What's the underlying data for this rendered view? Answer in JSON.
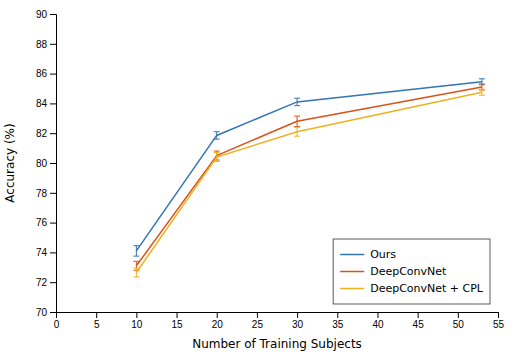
{
  "chart_data": {
    "type": "line",
    "x": [
      10,
      20,
      30,
      53
    ],
    "series": [
      {
        "name": "Ours",
        "color": "#3375b5",
        "values": [
          74.1,
          81.85,
          84.1,
          85.45
        ],
        "errors": [
          0.35,
          0.25,
          0.25,
          0.2
        ]
      },
      {
        "name": "DeepConvNet",
        "color": "#d95319",
        "values": [
          73.1,
          80.5,
          82.8,
          85.1
        ],
        "errors": [
          0.3,
          0.3,
          0.35,
          0.2
        ]
      },
      {
        "name": "DeepConvNet + CPL",
        "color": "#edb120",
        "values": [
          72.65,
          80.4,
          82.1,
          84.75
        ],
        "errors": [
          0.3,
          0.3,
          0.3,
          0.2
        ]
      }
    ],
    "xlabel": "Number of Training Subjects",
    "ylabel": "Accuracy (%)",
    "xlim": [
      0,
      55
    ],
    "ylim": [
      70,
      90
    ],
    "xticks": [
      0,
      5,
      10,
      15,
      20,
      25,
      30,
      35,
      40,
      45,
      50,
      55
    ],
    "yticks": [
      70,
      72,
      74,
      76,
      78,
      80,
      82,
      84,
      86,
      88,
      90
    ],
    "legend": "lower right",
    "grid": false
  }
}
